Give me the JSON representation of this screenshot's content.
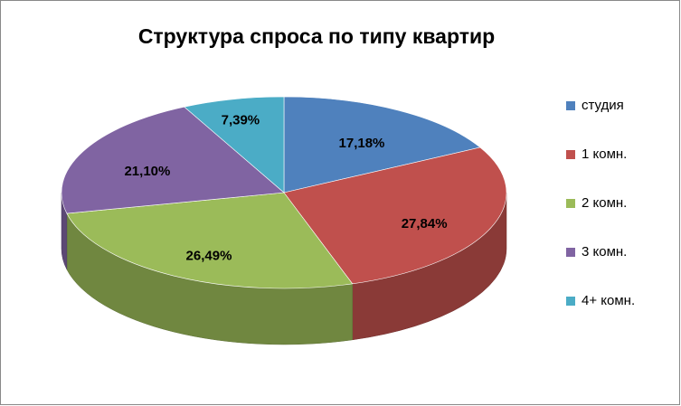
{
  "chart_data": {
    "type": "pie",
    "title": "Структура спроса по типу квартир",
    "categories": [
      "студия",
      "1 комн.",
      "2 комн.",
      "3 комн.",
      "4+ комн."
    ],
    "values": [
      17.18,
      27.84,
      26.49,
      21.1,
      7.39
    ],
    "value_labels": [
      "17,18%",
      "27,84%",
      "26,49%",
      "21,10%",
      "7,39%"
    ],
    "colors": [
      "#4f81bd",
      "#c0504d",
      "#9bbb59",
      "#8064a2",
      "#4bacc6"
    ],
    "legend": "right"
  }
}
